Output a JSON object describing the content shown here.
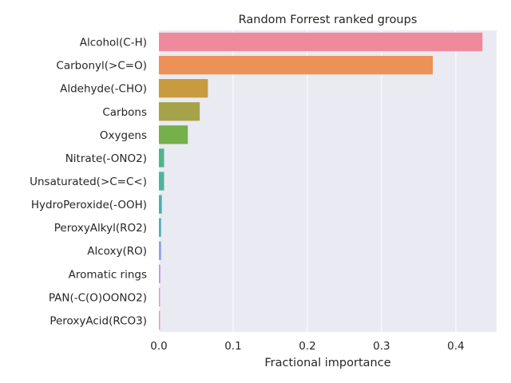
{
  "chart_data": {
    "type": "bar",
    "orientation": "horizontal",
    "title": "Random Forrest ranked groups",
    "xlabel": "Fractional importance",
    "ylabel": "",
    "xlim": [
      0,
      0.455
    ],
    "xticks": [
      "0.0",
      "0.1",
      "0.2",
      "0.3",
      "0.4"
    ],
    "grid": true,
    "categories": [
      "Alcohol(C-H)",
      "Carbonyl(>C=O)",
      "Aldehyde(-CHO)",
      "Carbons",
      "Oxygens",
      "Nitrate(-ONO2)",
      "Unsaturated(>C=C<)",
      "HydroPeroxide(-OOH)",
      "PeroxyAlkyl(RO2)",
      "Alcoxy(RO)",
      "Aromatic rings",
      "PAN(-C(O)OONO2)",
      "PeroxyAcid(RCO3)"
    ],
    "values": [
      0.436,
      0.369,
      0.066,
      0.055,
      0.039,
      0.007,
      0.007,
      0.004,
      0.003,
      0.003,
      0.002,
      0.0015,
      0.0015
    ],
    "colors": [
      "#ef8a9c",
      "#ec9259",
      "#c89b3f",
      "#a6a24a",
      "#76b04b",
      "#4fb48c",
      "#4db39f",
      "#4eafad",
      "#51adbf",
      "#89a4e3",
      "#bc98e3",
      "#e58bd6",
      "#ef89bd"
    ],
    "background": "#eaeaf2",
    "grid_color": "#ffffff"
  }
}
